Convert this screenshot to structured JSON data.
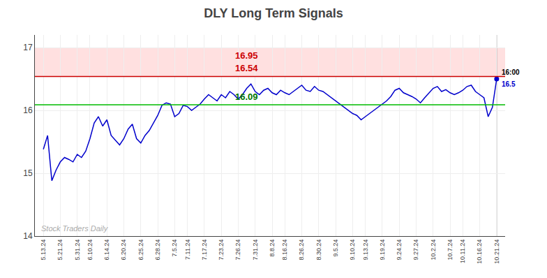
{
  "chart_data": {
    "type": "line",
    "title": "DLY Long Term Signals",
    "categories": [
      "5.13.24",
      null,
      null,
      null,
      "5.21.24",
      null,
      null,
      null,
      "5.31.24",
      null,
      null,
      "6.10.24",
      null,
      null,
      null,
      "6.14.24",
      null,
      null,
      null,
      "6.20.24",
      null,
      null,
      null,
      "6.25.24",
      null,
      null,
      null,
      "6.28.24",
      null,
      null,
      null,
      "7.5.24",
      null,
      null,
      "7.11.24",
      null,
      null,
      null,
      "7.17.24",
      null,
      null,
      null,
      "7.23.24",
      null,
      null,
      null,
      "7.26.24",
      null,
      null,
      null,
      "7.31.24",
      null,
      null,
      null,
      "8.8.24",
      null,
      null,
      "8.16.24",
      null,
      null,
      null,
      "8.26.24",
      null,
      null,
      null,
      "8.30.24",
      null,
      null,
      null,
      "9.5.24",
      null,
      null,
      null,
      "9.10.24",
      null,
      null,
      "9.13.24",
      null,
      null,
      null,
      "9.19.24",
      null,
      null,
      null,
      "9.24.24",
      null,
      null,
      null,
      "9.27.24",
      null,
      null,
      null,
      "10.2.24",
      null,
      null,
      null,
      "10.7.24",
      null,
      null,
      "10.11.24",
      null,
      null,
      null,
      "10.16.24",
      null,
      null,
      null,
      "10.21.24"
    ],
    "values": [
      15.38,
      15.6,
      14.88,
      15.05,
      15.18,
      15.25,
      15.22,
      15.18,
      15.3,
      15.25,
      15.35,
      15.55,
      15.8,
      15.9,
      15.75,
      15.85,
      15.6,
      15.52,
      15.45,
      15.55,
      15.7,
      15.78,
      15.55,
      15.48,
      15.6,
      15.68,
      15.8,
      15.92,
      16.08,
      16.12,
      16.1,
      15.9,
      15.95,
      16.08,
      16.06,
      16.0,
      16.05,
      16.1,
      16.18,
      16.25,
      16.2,
      16.15,
      16.25,
      16.2,
      16.3,
      16.25,
      16.18,
      16.25,
      16.35,
      16.42,
      16.3,
      16.25,
      16.32,
      16.35,
      16.28,
      16.25,
      16.32,
      16.28,
      16.25,
      16.3,
      16.35,
      16.4,
      16.32,
      16.3,
      16.38,
      16.32,
      16.3,
      16.25,
      16.2,
      16.15,
      16.1,
      16.05,
      16.0,
      15.95,
      15.92,
      15.85,
      15.9,
      15.95,
      16.0,
      16.05,
      16.1,
      16.15,
      16.22,
      16.32,
      16.35,
      16.28,
      16.25,
      16.22,
      16.18,
      16.12,
      16.2,
      16.28,
      16.35,
      16.38,
      16.3,
      16.33,
      16.28,
      16.25,
      16.28,
      16.32,
      16.38,
      16.4,
      16.3,
      16.25,
      16.2,
      15.9,
      16.05,
      16.5
    ],
    "color": "#0000cc",
    "ylim": [
      14,
      17.2
    ],
    "yticks": [
      14,
      15,
      16,
      17
    ],
    "grid": true,
    "bands": [
      {
        "from": 16.54,
        "to": 17.0,
        "color": "#ffcccc",
        "label": "16.95",
        "label_color": "#cc0000"
      }
    ],
    "lines": [
      {
        "value": 16.54,
        "color": "#cc0000",
        "label": "16.54",
        "label_color": "#cc0000"
      },
      {
        "value": 16.09,
        "color": "#00bb00",
        "label": "16.09",
        "label_color": "#007700"
      }
    ],
    "last_time_label": "16:00",
    "last_value_label": "16.5",
    "last_value_color": "#0000cc",
    "watermark": "Stock Traders Daily",
    "watermark_color": "#aaaaaa"
  }
}
